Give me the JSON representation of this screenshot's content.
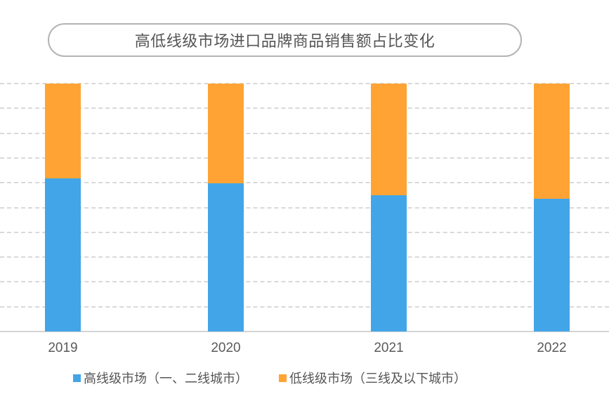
{
  "chart_data": {
    "type": "bar",
    "stacked": true,
    "title": "高低线级市场进口品牌商品销售额占比变化",
    "categories": [
      "2019",
      "2020",
      "2021",
      "2022"
    ],
    "series": [
      {
        "name": "高线级市场（一、二线城市）",
        "color": "#42a5e8",
        "values": [
          61.8,
          59.8,
          55.1,
          53.5
        ]
      },
      {
        "name": "低线级市场（三线及以下城市）",
        "color": "#ffa434",
        "values": [
          38.2,
          40.2,
          44.9,
          46.5
        ]
      }
    ],
    "xlabel": "",
    "ylabel": "",
    "ylim": [
      0,
      100
    ],
    "y_ticks_shown": false,
    "grid": {
      "horizontal": true,
      "style": "dashed",
      "lines": 10
    },
    "legend_position": "bottom"
  },
  "title": "高低线级市场进口品牌商品销售额占比变化",
  "legend": {
    "high": "高线级市场（一、二线城市）",
    "low": "低线级市场（三线及以下城市）"
  },
  "colors": {
    "high": "#42a5e8",
    "low": "#ffa434",
    "grid": "#d9d9d9",
    "text": "#555555"
  }
}
